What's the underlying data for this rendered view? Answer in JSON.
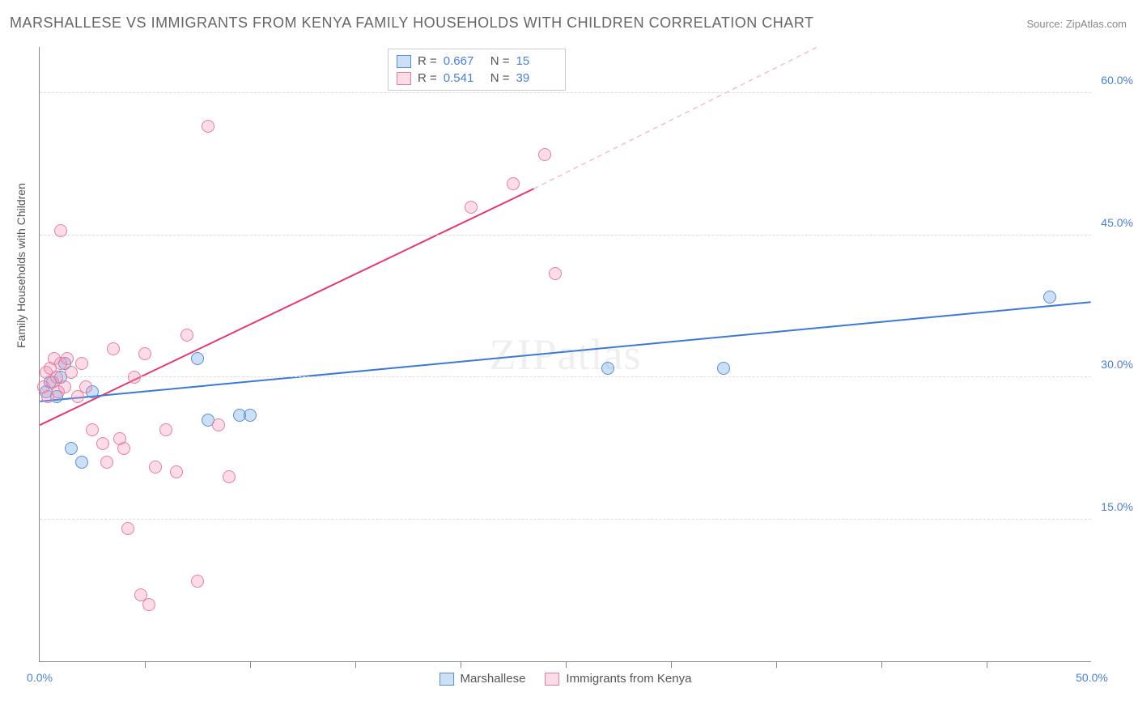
{
  "title": "MARSHALLESE VS IMMIGRANTS FROM KENYA FAMILY HOUSEHOLDS WITH CHILDREN CORRELATION CHART",
  "source": "Source: ZipAtlas.com",
  "watermark": "ZIPatlas",
  "chart": {
    "type": "scatter",
    "background_color": "#ffffff",
    "grid_color": "#dddddd",
    "axis_color": "#888888",
    "ylabel": "Family Households with Children",
    "label_fontsize": 14,
    "xlim": [
      0,
      50
    ],
    "ylim": [
      0,
      65
    ],
    "yticks": [
      {
        "value": 15.0,
        "label": "15.0%"
      },
      {
        "value": 30.0,
        "label": "30.0%"
      },
      {
        "value": 45.0,
        "label": "45.0%"
      },
      {
        "value": 60.0,
        "label": "60.0%"
      }
    ],
    "xticks": [
      {
        "value": 0.0,
        "label": "0.0%"
      },
      {
        "value": 50.0,
        "label": "50.0%"
      }
    ],
    "xtick_marks": [
      5,
      10,
      15,
      20,
      25,
      30,
      35,
      40,
      45
    ],
    "series": [
      {
        "name": "Marshallese",
        "color_fill": "rgba(106,163,230,0.35)",
        "color_stroke": "#5a8fd0",
        "line_color": "#3b78d8",
        "line_width": 2,
        "marker": "circle",
        "R": "0.667",
        "N": "15",
        "points": [
          [
            0.3,
            28.5
          ],
          [
            0.5,
            29.5
          ],
          [
            0.8,
            28.0
          ],
          [
            1.0,
            30.0
          ],
          [
            1.2,
            31.5
          ],
          [
            1.5,
            22.5
          ],
          [
            2.0,
            21.0
          ],
          [
            2.5,
            28.5
          ],
          [
            8.0,
            25.5
          ],
          [
            9.5,
            26.0
          ],
          [
            10.0,
            26.0
          ],
          [
            7.5,
            32.0
          ],
          [
            27.0,
            31.0
          ],
          [
            32.5,
            31.0
          ],
          [
            48.0,
            38.5
          ]
        ],
        "trend": {
          "x1": 0,
          "y1": 27.5,
          "x2": 50,
          "y2": 38.0
        }
      },
      {
        "name": "Immigrants from Kenya",
        "color_fill": "rgba(244,143,177,0.3)",
        "color_stroke": "#e77da0",
        "line_color": "#e63670",
        "line_width": 2,
        "marker": "circle",
        "R": "0.541",
        "N": "39",
        "points": [
          [
            0.2,
            29.0
          ],
          [
            0.3,
            30.5
          ],
          [
            0.4,
            28.0
          ],
          [
            0.5,
            31.0
          ],
          [
            0.6,
            29.5
          ],
          [
            0.7,
            32.0
          ],
          [
            0.8,
            30.0
          ],
          [
            0.9,
            28.5
          ],
          [
            1.0,
            31.5
          ],
          [
            1.2,
            29.0
          ],
          [
            1.3,
            32.0
          ],
          [
            1.5,
            30.5
          ],
          [
            1.8,
            28.0
          ],
          [
            1.0,
            45.5
          ],
          [
            2.0,
            31.5
          ],
          [
            2.2,
            29.0
          ],
          [
            2.5,
            24.5
          ],
          [
            3.0,
            23.0
          ],
          [
            3.5,
            33.0
          ],
          [
            4.0,
            22.5
          ],
          [
            3.8,
            23.5
          ],
          [
            4.5,
            30.0
          ],
          [
            5.0,
            32.5
          ],
          [
            4.2,
            14.0
          ],
          [
            5.5,
            20.5
          ],
          [
            3.2,
            21.0
          ],
          [
            6.0,
            24.5
          ],
          [
            6.5,
            20.0
          ],
          [
            7.0,
            34.5
          ],
          [
            4.8,
            7.0
          ],
          [
            5.2,
            6.0
          ],
          [
            7.5,
            8.5
          ],
          [
            8.0,
            56.5
          ],
          [
            8.5,
            25.0
          ],
          [
            9.0,
            19.5
          ],
          [
            22.5,
            50.5
          ],
          [
            24.5,
            41.0
          ],
          [
            24.0,
            53.5
          ],
          [
            20.5,
            48.0
          ]
        ],
        "trend": {
          "x1": 0,
          "y1": 25.0,
          "x2": 23.5,
          "y2": 50.0
        },
        "trend_extended": {
          "x1": 23.5,
          "y1": 50.0,
          "x2": 37.0,
          "y2": 65.0
        }
      }
    ]
  }
}
